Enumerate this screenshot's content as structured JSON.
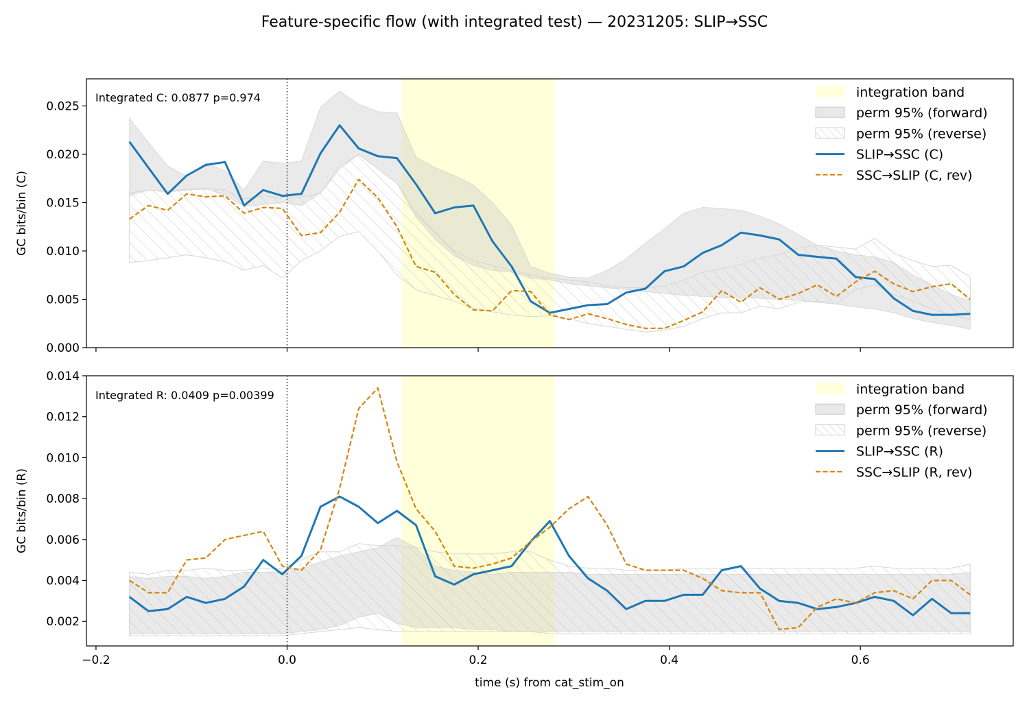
{
  "figure": {
    "title": "Feature-specific flow (with integrated test) — 20231205: SLIP→SSC",
    "xlabel": "time (s) from cat_stim_on"
  },
  "colors": {
    "forward": "#1f77b4",
    "reverse": "#d4860b",
    "band": "#ffffd9",
    "perm_forward": "#c8c8c8",
    "perm_reverse_hatch": "#cfcfcf"
  },
  "chart_data": [
    {
      "type": "line",
      "ylabel": "GC bits/bin (C)",
      "annotation": "Integrated C: 0.0877  p=0.974",
      "xlim": [
        -0.21,
        0.76
      ],
      "ylim": [
        0,
        0.0278
      ],
      "xticks": [
        -0.2,
        0.0,
        0.2,
        0.4,
        0.6
      ],
      "xtick_labels": [
        "",
        "",
        "",
        "",
        ""
      ],
      "yticks": [
        0.0,
        0.005,
        0.01,
        0.015,
        0.02,
        0.025
      ],
      "ytick_labels": [
        "0.000",
        "0.005",
        "0.010",
        "0.015",
        "0.020",
        "0.025"
      ],
      "stim_onset": 0.0,
      "integration_band": [
        0.12,
        0.28
      ],
      "legend_position": "top-right",
      "legend": [
        "integration band",
        "perm 95% (forward)",
        "perm 95% (reverse)",
        "SLIP→SSC (C)",
        "SSC→SLIP (C, rev)"
      ],
      "x": [
        -0.165,
        -0.145,
        -0.125,
        -0.105,
        -0.085,
        -0.065,
        -0.045,
        -0.025,
        -0.005,
        0.015,
        0.035,
        0.055,
        0.075,
        0.095,
        0.115,
        0.135,
        0.155,
        0.175,
        0.195,
        0.215,
        0.235,
        0.255,
        0.275,
        0.295,
        0.315,
        0.335,
        0.355,
        0.375,
        0.395,
        0.415,
        0.435,
        0.455,
        0.475,
        0.495,
        0.515,
        0.535,
        0.555,
        0.575,
        0.595,
        0.615,
        0.635,
        0.655,
        0.675,
        0.695,
        0.715
      ],
      "series": [
        {
          "name": "SLIP→SSC (C)",
          "style": "solid",
          "values": [
            0.0213,
            0.0186,
            0.0159,
            0.0178,
            0.0189,
            0.0192,
            0.0147,
            0.0163,
            0.0157,
            0.0159,
            0.0201,
            0.023,
            0.0206,
            0.0198,
            0.0196,
            0.0169,
            0.0139,
            0.0145,
            0.0147,
            0.011,
            0.0084,
            0.0048,
            0.0036,
            0.004,
            0.0044,
            0.0045,
            0.0057,
            0.0061,
            0.0079,
            0.0084,
            0.0098,
            0.0106,
            0.0119,
            0.0116,
            0.0112,
            0.0096,
            0.0094,
            0.0092,
            0.0073,
            0.0071,
            0.0051,
            0.0038,
            0.0034,
            0.0034,
            0.0035
          ]
        },
        {
          "name": "SSC→SLIP (C, rev)",
          "style": "dashed",
          "values": [
            0.0133,
            0.0147,
            0.0142,
            0.0159,
            0.0156,
            0.0157,
            0.0139,
            0.0145,
            0.0144,
            0.0116,
            0.0119,
            0.014,
            0.0174,
            0.0155,
            0.0125,
            0.0084,
            0.0078,
            0.0055,
            0.0039,
            0.0038,
            0.0059,
            0.0058,
            0.0034,
            0.0029,
            0.0035,
            0.003,
            0.0024,
            0.002,
            0.002,
            0.0028,
            0.0037,
            0.0059,
            0.0047,
            0.0062,
            0.005,
            0.0056,
            0.0065,
            0.0053,
            0.0068,
            0.0079,
            0.0066,
            0.0058,
            0.0063,
            0.0066,
            0.005
          ]
        }
      ],
      "perm_forward": {
        "low": [
          0.0157,
          0.0163,
          0.0161,
          0.0163,
          0.0164,
          0.0158,
          0.0146,
          0.0148,
          0.015,
          0.0147,
          0.016,
          0.0187,
          0.02,
          0.0185,
          0.017,
          0.0135,
          0.0112,
          0.0095,
          0.0085,
          0.008,
          0.0078,
          0.0072,
          0.007,
          0.0066,
          0.0064,
          0.0062,
          0.006,
          0.0058,
          0.0056,
          0.0054,
          0.0053,
          0.0052,
          0.0052,
          0.0051,
          0.005,
          0.0049,
          0.0047,
          0.0045,
          0.0042,
          0.004,
          0.0036,
          0.003,
          0.0026,
          0.0023,
          0.0019
        ],
        "high": [
          0.0237,
          0.0212,
          0.0188,
          0.0177,
          0.0191,
          0.0183,
          0.0163,
          0.0193,
          0.0191,
          0.0193,
          0.0249,
          0.0265,
          0.0252,
          0.0244,
          0.0243,
          0.0197,
          0.0186,
          0.0178,
          0.0168,
          0.015,
          0.0127,
          0.0084,
          0.0077,
          0.0073,
          0.0072,
          0.008,
          0.0092,
          0.0108,
          0.0123,
          0.0139,
          0.0145,
          0.0144,
          0.0142,
          0.0136,
          0.0128,
          0.0117,
          0.0106,
          0.01,
          0.0096,
          0.0094,
          0.0088,
          0.0075,
          0.0065,
          0.0055,
          0.0048
        ]
      },
      "perm_reverse": {
        "low": [
          0.0088,
          0.009,
          0.0093,
          0.0096,
          0.0093,
          0.0089,
          0.008,
          0.0085,
          0.0072,
          0.009,
          0.01,
          0.0115,
          0.012,
          0.01,
          0.0075,
          0.006,
          0.0054,
          0.0048,
          0.0041,
          0.0037,
          0.0034,
          0.0032,
          0.0033,
          0.003,
          0.0025,
          0.0022,
          0.0019,
          0.0016,
          0.0018,
          0.0022,
          0.003,
          0.0036,
          0.0036,
          0.0043,
          0.004,
          0.0047,
          0.0048,
          0.0045,
          0.006,
          0.0065,
          0.0055,
          0.0048,
          0.004,
          0.0034,
          0.0029
        ],
        "high": [
          0.016,
          0.0163,
          0.0162,
          0.0164,
          0.0165,
          0.0163,
          0.0154,
          0.0157,
          0.0155,
          0.0156,
          0.016,
          0.0185,
          0.02,
          0.0185,
          0.017,
          0.014,
          0.012,
          0.01,
          0.009,
          0.0085,
          0.008,
          0.0075,
          0.0072,
          0.007,
          0.0068,
          0.0064,
          0.0062,
          0.0062,
          0.0064,
          0.007,
          0.0078,
          0.0082,
          0.0086,
          0.0093,
          0.0096,
          0.0103,
          0.0106,
          0.0104,
          0.0102,
          0.0113,
          0.0098,
          0.009,
          0.0084,
          0.0085,
          0.0073
        ]
      }
    },
    {
      "type": "line",
      "ylabel": "GC bits/bin (R)",
      "annotation": "Integrated R: 0.0409  p=0.00399",
      "xlim": [
        -0.21,
        0.76
      ],
      "ylim": [
        0.0008,
        0.014
      ],
      "xticks": [
        -0.2,
        0.0,
        0.2,
        0.4,
        0.6
      ],
      "xtick_labels": [
        "−0.2",
        "0.0",
        "0.2",
        "0.4",
        "0.6"
      ],
      "yticks": [
        0.002,
        0.004,
        0.006,
        0.008,
        0.01,
        0.012,
        0.014
      ],
      "ytick_labels": [
        "0.002",
        "0.004",
        "0.006",
        "0.008",
        "0.010",
        "0.012",
        "0.014"
      ],
      "stim_onset": 0.0,
      "integration_band": [
        0.12,
        0.28
      ],
      "legend_position": "top-right",
      "legend": [
        "integration band",
        "perm 95% (forward)",
        "perm 95% (reverse)",
        "SLIP→SSC (R)",
        "SSC→SLIP (R, rev)"
      ],
      "x": [
        -0.165,
        -0.145,
        -0.125,
        -0.105,
        -0.085,
        -0.065,
        -0.045,
        -0.025,
        -0.005,
        0.015,
        0.035,
        0.055,
        0.075,
        0.095,
        0.115,
        0.135,
        0.155,
        0.175,
        0.195,
        0.215,
        0.235,
        0.255,
        0.275,
        0.295,
        0.315,
        0.335,
        0.355,
        0.375,
        0.395,
        0.415,
        0.435,
        0.455,
        0.475,
        0.495,
        0.515,
        0.535,
        0.555,
        0.575,
        0.595,
        0.615,
        0.635,
        0.655,
        0.675,
        0.695,
        0.715
      ],
      "series": [
        {
          "name": "SLIP→SSC (R)",
          "style": "solid",
          "values": [
            0.0032,
            0.0025,
            0.0026,
            0.0032,
            0.0029,
            0.0031,
            0.0037,
            0.005,
            0.0043,
            0.0052,
            0.0076,
            0.0081,
            0.0076,
            0.0068,
            0.0074,
            0.0067,
            0.0042,
            0.0038,
            0.0043,
            0.0045,
            0.0047,
            0.0059,
            0.0069,
            0.0052,
            0.0041,
            0.0035,
            0.0026,
            0.003,
            0.003,
            0.0033,
            0.0033,
            0.0045,
            0.0047,
            0.0036,
            0.003,
            0.0029,
            0.0026,
            0.0027,
            0.0029,
            0.0032,
            0.003,
            0.0023,
            0.0031,
            0.0024,
            0.0024
          ]
        },
        {
          "name": "SSC→SLIP (R, rev)",
          "style": "dashed",
          "values": [
            0.004,
            0.0034,
            0.0034,
            0.005,
            0.0051,
            0.006,
            0.0062,
            0.0064,
            0.0047,
            0.0045,
            0.0055,
            0.0085,
            0.0124,
            0.0134,
            0.0098,
            0.0075,
            0.0064,
            0.0047,
            0.0046,
            0.0048,
            0.0051,
            0.0059,
            0.0066,
            0.0075,
            0.0081,
            0.0067,
            0.0048,
            0.0045,
            0.0045,
            0.0045,
            0.0041,
            0.0035,
            0.0034,
            0.0034,
            0.0016,
            0.0017,
            0.0027,
            0.0031,
            0.0029,
            0.0034,
            0.0035,
            0.0031,
            0.004,
            0.004,
            0.0033
          ]
        }
      ],
      "perm_forward": {
        "low": [
          0.0014,
          0.0014,
          0.0014,
          0.0014,
          0.0014,
          0.0014,
          0.0014,
          0.0014,
          0.0014,
          0.0015,
          0.0016,
          0.0018,
          0.0022,
          0.0024,
          0.0019,
          0.0017,
          0.0017,
          0.0017,
          0.0016,
          0.0016,
          0.0015,
          0.0015,
          0.0015,
          0.0015,
          0.0015,
          0.0015,
          0.0015,
          0.0015,
          0.0015,
          0.0015,
          0.0015,
          0.0015,
          0.0015,
          0.0015,
          0.0015,
          0.0015,
          0.0015,
          0.0015,
          0.0015,
          0.0015,
          0.0015,
          0.0015,
          0.0015,
          0.0015,
          0.0015
        ],
        "high": [
          0.0042,
          0.0041,
          0.0042,
          0.0042,
          0.0041,
          0.0042,
          0.0044,
          0.0044,
          0.0044,
          0.0046,
          0.0049,
          0.0052,
          0.0054,
          0.0056,
          0.0061,
          0.0056,
          0.0047,
          0.0045,
          0.0044,
          0.0043,
          0.0044,
          0.0044,
          0.0044,
          0.0044,
          0.0043,
          0.0043,
          0.0043,
          0.0043,
          0.0043,
          0.0043,
          0.0043,
          0.0043,
          0.0043,
          0.0043,
          0.0043,
          0.0043,
          0.0043,
          0.0043,
          0.0043,
          0.0043,
          0.0043,
          0.0043,
          0.0043,
          0.0043,
          0.0044
        ]
      },
      "perm_reverse": {
        "low": [
          0.0013,
          0.0013,
          0.0013,
          0.0013,
          0.0013,
          0.0013,
          0.0013,
          0.0013,
          0.0013,
          0.0014,
          0.0015,
          0.0016,
          0.0017,
          0.0016,
          0.0015,
          0.0015,
          0.0015,
          0.0015,
          0.0015,
          0.0015,
          0.0015,
          0.0015,
          0.0014,
          0.0014,
          0.0014,
          0.0014,
          0.0014,
          0.0014,
          0.0014,
          0.0014,
          0.0014,
          0.0014,
          0.0014,
          0.0014,
          0.0014,
          0.0014,
          0.0014,
          0.0014,
          0.0014,
          0.0014,
          0.0014,
          0.0014,
          0.0014,
          0.0014,
          0.0014
        ],
        "high": [
          0.0044,
          0.0043,
          0.0045,
          0.0045,
          0.0046,
          0.0045,
          0.0045,
          0.0046,
          0.0046,
          0.005,
          0.0054,
          0.0054,
          0.0058,
          0.0057,
          0.0057,
          0.0056,
          0.0054,
          0.0053,
          0.0053,
          0.0053,
          0.0054,
          0.0054,
          0.005,
          0.0047,
          0.0046,
          0.0046,
          0.0045,
          0.0045,
          0.0045,
          0.0046,
          0.0046,
          0.0046,
          0.0046,
          0.0046,
          0.0046,
          0.0046,
          0.0046,
          0.0046,
          0.0046,
          0.0047,
          0.0046,
          0.0046,
          0.0046,
          0.0046,
          0.0048
        ]
      }
    }
  ]
}
